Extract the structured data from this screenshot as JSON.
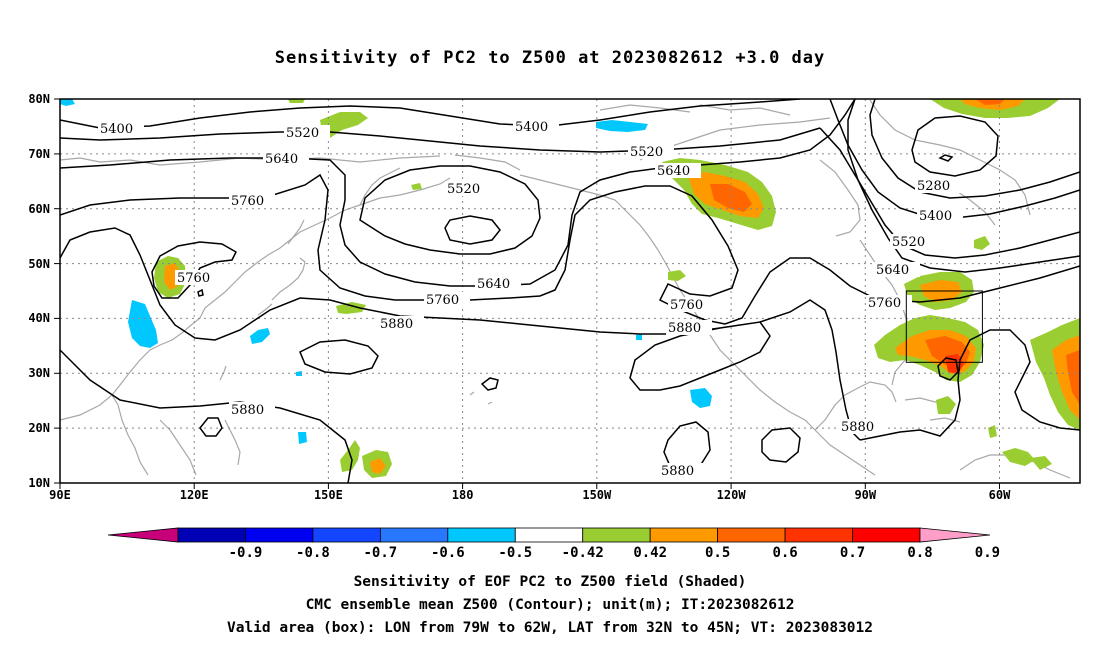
{
  "title": "Sensitivity of PC2 to Z500 at 2023082612 +3.0 day",
  "lat_ticks": [
    "80N",
    "70N",
    "60N",
    "50N",
    "40N",
    "30N",
    "20N",
    "10N"
  ],
  "lon_ticks": [
    "90E",
    "120E",
    "150E",
    "180",
    "150W",
    "120W",
    "90W",
    "60W"
  ],
  "contour_labels": {
    "5280": "5280",
    "5400": "5400",
    "5520": "5520",
    "5640": "5640",
    "5760": "5760",
    "5880": "5880"
  },
  "valid_box": {
    "lon_min": -79,
    "lon_max": -62,
    "lat_min": 32,
    "lat_max": 45
  },
  "colorbar": {
    "ticks": [
      "-0.9",
      "-0.8",
      "-0.7",
      "-0.6",
      "-0.5",
      "-0.42",
      "0.42",
      "0.5",
      "0.6",
      "0.7",
      "0.8",
      "0.9"
    ],
    "colors": [
      "#c8007a",
      "#0000b4",
      "#0000f0",
      "#1446ff",
      "#2878ff",
      "#00c8ff",
      "#ffffff",
      "#9acd32",
      "#ff9900",
      "#ff6600",
      "#ff3300",
      "#ff0000",
      "#ff9ec8"
    ]
  },
  "shading_colors": {
    "green": "#9acd32",
    "orange": "#ff9900",
    "dark_orange": "#ff6600",
    "red": "#ff3300",
    "cyan": "#00c8ff"
  },
  "captions": {
    "line1": "Sensitivity of EOF PC2 to Z500 field (Shaded)",
    "line2": "CMC ensemble mean Z500 (Contour); unit(m); IT:2023082612",
    "line3": "Valid area (box): LON from 79W to 62W, LAT from 32N to 45N; VT: 2023083012"
  }
}
